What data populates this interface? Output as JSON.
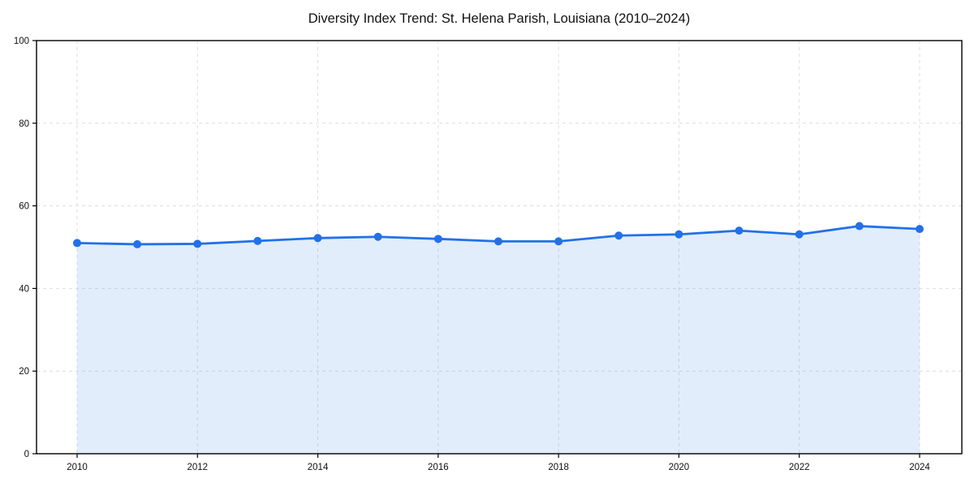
{
  "chart_data": {
    "type": "line",
    "title": "Diversity Index Trend: St. Helena Parish, Louisiana (2010–2024)",
    "xlabel": "",
    "ylabel": "",
    "x": [
      2010,
      2011,
      2012,
      2013,
      2014,
      2015,
      2016,
      2017,
      2018,
      2019,
      2020,
      2021,
      2022,
      2023,
      2024
    ],
    "series": [
      {
        "name": "Diversity Index",
        "values": [
          51.0,
          50.7,
          50.8,
          51.5,
          52.2,
          52.5,
          52.0,
          51.4,
          51.4,
          52.8,
          53.1,
          54.0,
          53.1,
          55.1,
          54.4
        ]
      }
    ],
    "ylim": [
      0,
      100
    ],
    "yticks": [
      0,
      20,
      40,
      60,
      80,
      100
    ],
    "xticks": [
      2010,
      2012,
      2014,
      2016,
      2018,
      2020,
      2022,
      2024
    ],
    "grid": true,
    "legend": "none",
    "line_color": "#2271e8",
    "marker_color": "#2271e8",
    "fill_color": "rgba(34, 113, 232, 0.13)",
    "spine_color": "#000000",
    "grid_color": "#dedede",
    "background_color": "#ffffff"
  }
}
